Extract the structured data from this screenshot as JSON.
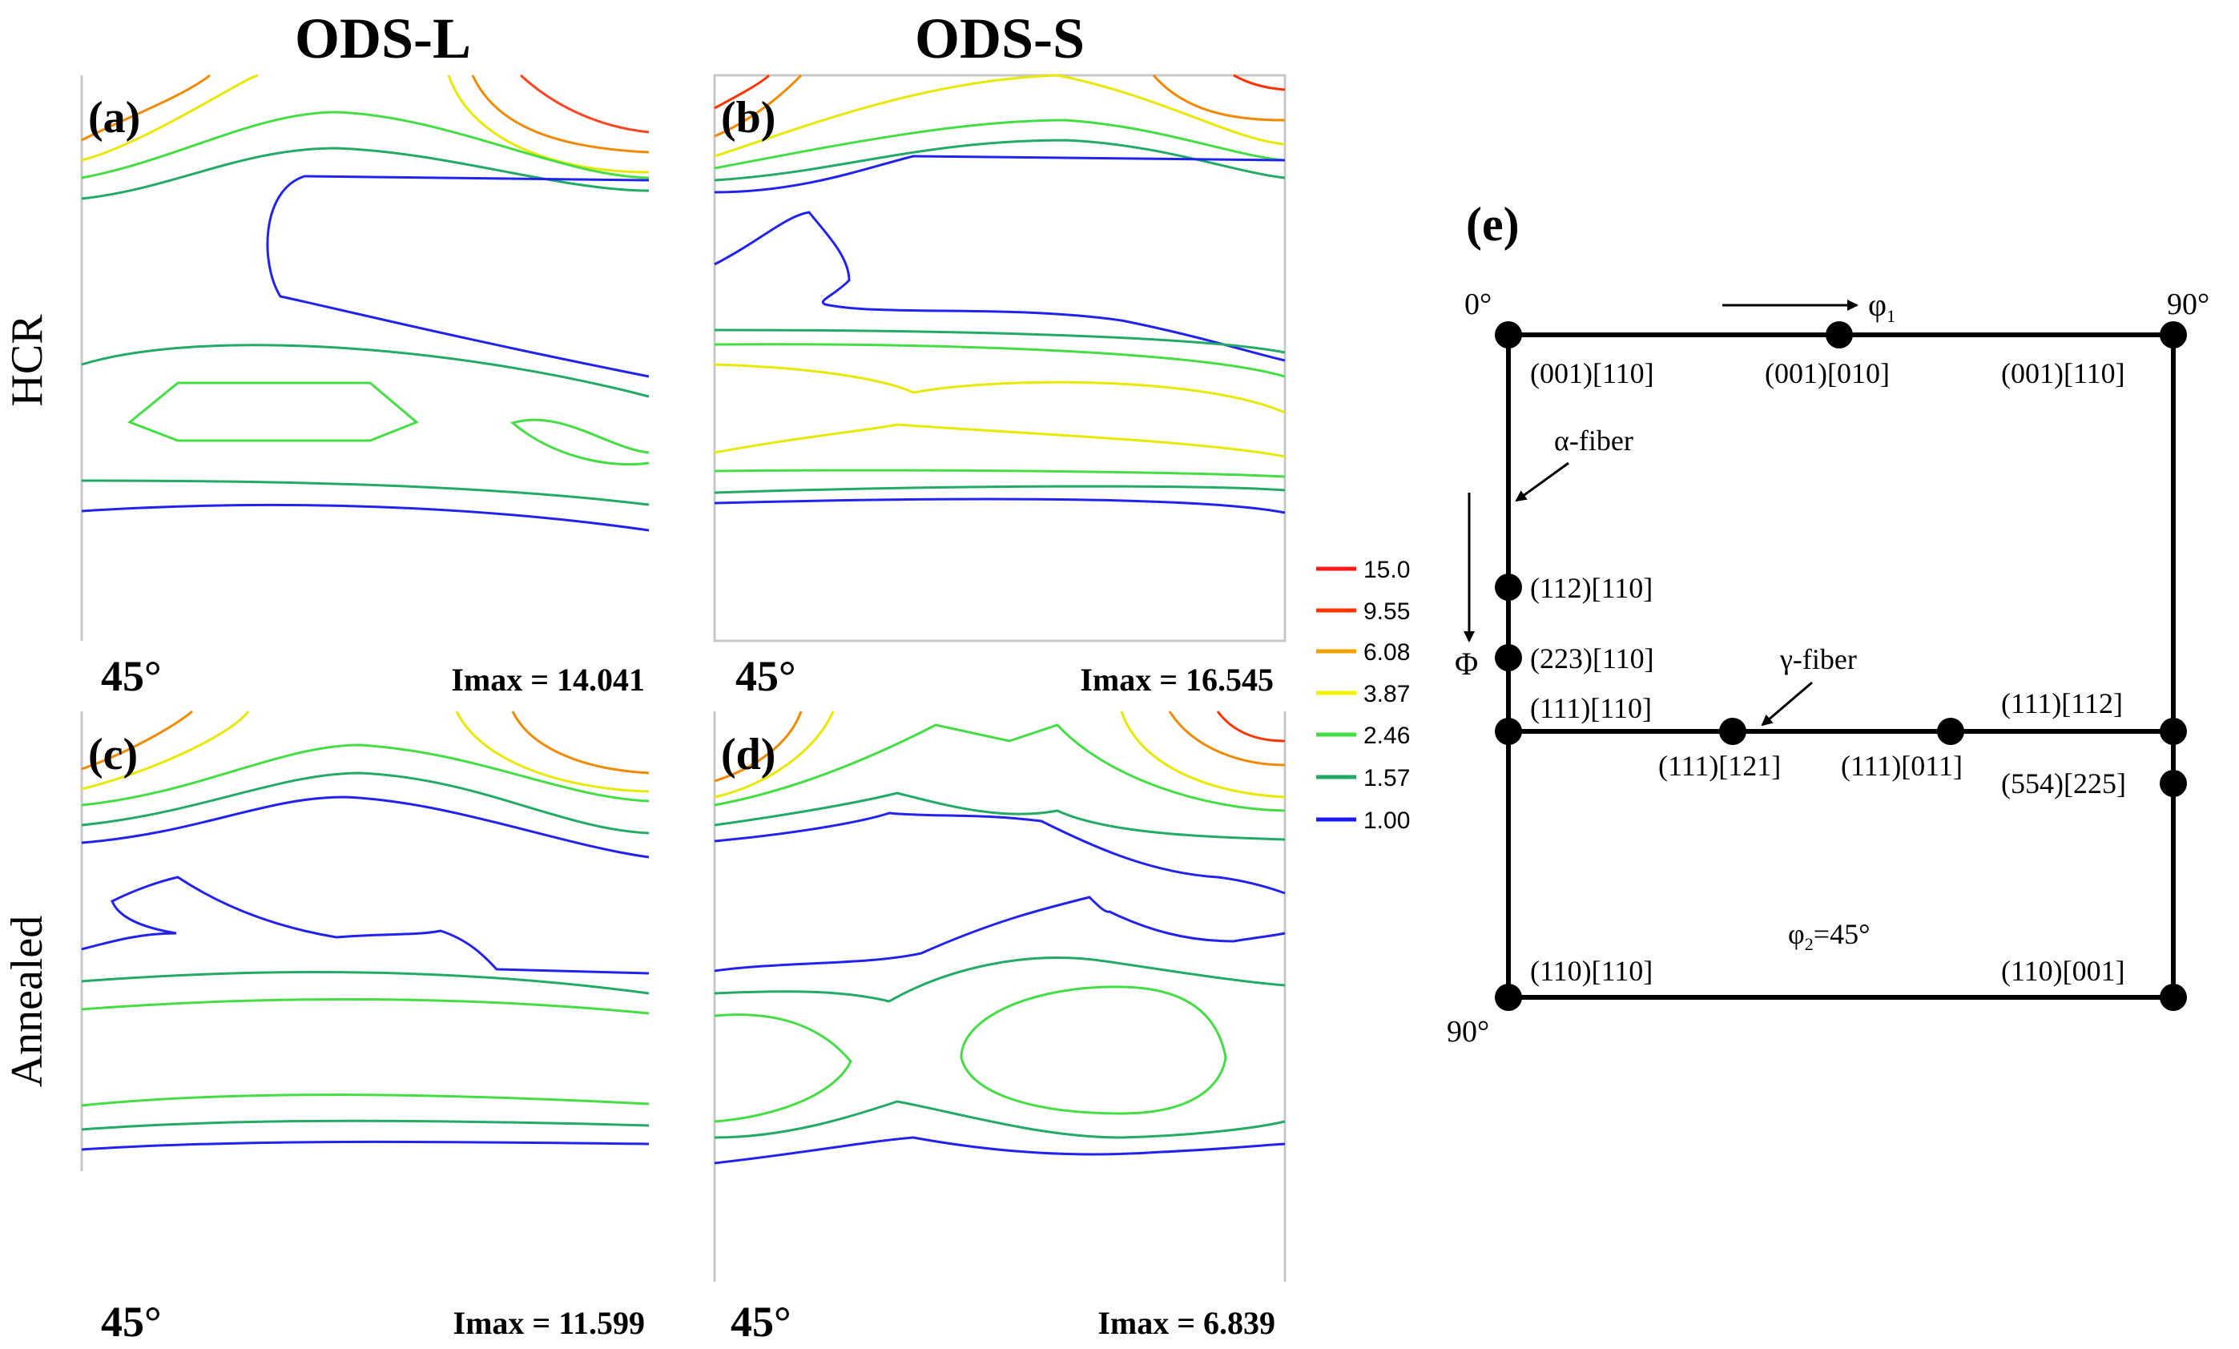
{
  "columns": {
    "left": "ODS-L",
    "right": "ODS-S"
  },
  "rows": {
    "top": "HCR",
    "bottom": "Annealed"
  },
  "panels": [
    {
      "id": "a",
      "label": "(a)",
      "angle": "45°",
      "imax": "Imax = 14.041"
    },
    {
      "id": "b",
      "label": "(b)",
      "angle": "45°",
      "imax": "Imax = 16.545"
    },
    {
      "id": "c",
      "label": "(c)",
      "angle": "45°",
      "imax": "Imax = 11.599"
    },
    {
      "id": "d",
      "label": "(d)",
      "angle": "45°",
      "imax": "Imax = 6.839"
    }
  ],
  "legend": [
    {
      "value": "15.0",
      "color": "#ff1a1a"
    },
    {
      "value": "9.55",
      "color": "#ff3300"
    },
    {
      "value": "6.08",
      "color": "#f5a000"
    },
    {
      "value": "3.87",
      "color": "#f0f000"
    },
    {
      "value": "2.46",
      "color": "#44dd44"
    },
    {
      "value": "1.57",
      "color": "#22aa66"
    },
    {
      "value": "1.00",
      "color": "#1a1aff"
    }
  ],
  "schematic": {
    "label": "(e)",
    "corner_top_left": "0°",
    "corner_top_right": "90°",
    "corner_bottom_left": "90°",
    "phi1_symbol": "φ",
    "phi1_sub": "1",
    "Phi_symbol": "Φ",
    "alpha_fiber": "α-fiber",
    "gamma_fiber": "γ-fiber",
    "phi2_symbol": "φ",
    "phi2_sub": "2",
    "phi2_value": "=45°",
    "orientations": {
      "o001_110_left": "(001)[110]",
      "o001_010": "(001)[010]",
      "o001_110_right": "(001)[110]",
      "o112_110": "(112)[110]",
      "o223_110": "(223)[110]",
      "o111_110": "(111)[110]",
      "o111_121": "(111)[121]",
      "o111_011": "(111)[011]",
      "o111_112": "(111)[112]",
      "o554_225": "(554)[225]",
      "o110_110": "(110)[110]",
      "o110_001": "(110)[001]"
    }
  }
}
